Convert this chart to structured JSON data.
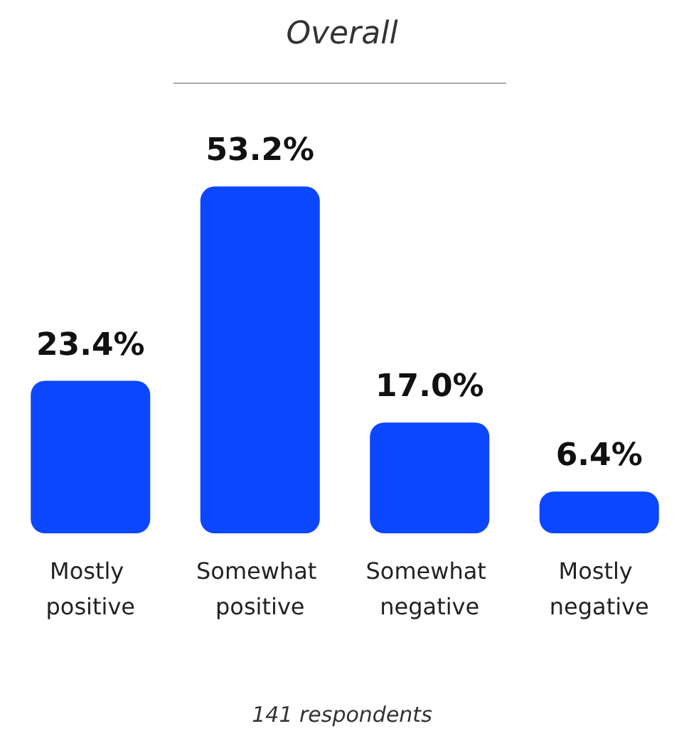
{
  "chart_data": {
    "type": "bar",
    "title": "Overall",
    "categories": [
      "Mostly positive",
      "Somewhat positive",
      "Somewhat negative",
      "Mostly negative"
    ],
    "values": [
      23.4,
      53.2,
      17.0,
      6.4
    ],
    "value_labels": [
      "23.4%",
      "53.2%",
      "17.0%",
      "6.4%"
    ],
    "color": "#0a47ff",
    "annotations": [
      "141 respondents"
    ]
  }
}
